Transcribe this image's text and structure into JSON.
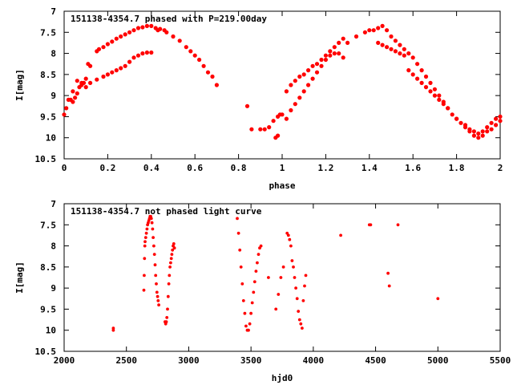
{
  "chart_data": [
    {
      "type": "scatter",
      "title": "151138-4354.7 phased with P=219.00day",
      "xlabel": "phase",
      "ylabel": "I[mag]",
      "xlim": [
        0,
        2
      ],
      "ylim": [
        10.5,
        7
      ],
      "y_inverted": true,
      "xticks": [
        0,
        0.2,
        0.4,
        0.6,
        0.8,
        1,
        1.2,
        1.4,
        1.6,
        1.8,
        2
      ],
      "xtick_labels": [
        "0",
        "0.2",
        "0.4",
        "0.6",
        "0.8",
        "1",
        "1.2",
        "1.4",
        "1.6",
        "1.8",
        "2"
      ],
      "yticks": [
        7,
        7.5,
        8,
        8.5,
        9,
        9.5,
        10,
        10.5
      ],
      "ytick_labels": [
        "7",
        "7.5",
        "8",
        "8.5",
        "9",
        "9.5",
        "10",
        "10.5"
      ],
      "grid": false,
      "point_color": "#ff0000",
      "series": [
        {
          "x": [
            0.0,
            0.01,
            0.02,
            0.03,
            0.04,
            0.05,
            0.06,
            0.07,
            0.08,
            0.09,
            0.1,
            0.11,
            0.12,
            0.04,
            0.06,
            0.08,
            0.1,
            0.12,
            0.15,
            0.16,
            0.18,
            0.2,
            0.22,
            0.24,
            0.26,
            0.28,
            0.3,
            0.32,
            0.34,
            0.36,
            0.38,
            0.4,
            0.42,
            0.44,
            0.46,
            0.15,
            0.18,
            0.2,
            0.22,
            0.24,
            0.26,
            0.28,
            0.3,
            0.32,
            0.34,
            0.36,
            0.38,
            0.4,
            0.43,
            0.47,
            0.5,
            0.53,
            0.56,
            0.58,
            0.6,
            0.62,
            0.64,
            0.66,
            0.68,
            0.7,
            0.84,
            0.86,
            0.9,
            0.92,
            0.94,
            0.96,
            0.98,
            0.99,
            1.0,
            0.97,
            0.98,
            1.02,
            1.04,
            1.06,
            1.08,
            1.1,
            1.12,
            1.14,
            1.16,
            1.18,
            1.2,
            1.22,
            1.24,
            1.26,
            1.28,
            1.02,
            1.04,
            1.06,
            1.08,
            1.1,
            1.12,
            1.14,
            1.16,
            1.18,
            1.2,
            1.22,
            1.24,
            1.26,
            1.28,
            1.3,
            1.34,
            1.38,
            1.4,
            1.42,
            1.44,
            1.46,
            1.48,
            1.5,
            1.52,
            1.54,
            1.56,
            1.58,
            1.6,
            1.62,
            1.64,
            1.66,
            1.68,
            1.7,
            1.72,
            1.74,
            1.76,
            1.78,
            1.8,
            1.82,
            1.84,
            1.86,
            1.88,
            1.9,
            1.92,
            1.94,
            1.96,
            1.98,
            2.0,
            1.44,
            1.46,
            1.48,
            1.5,
            1.52,
            1.54,
            1.56,
            1.58,
            1.6,
            1.62,
            1.64,
            1.66,
            1.68,
            1.7,
            1.72,
            1.74,
            1.76,
            1.8,
            1.84,
            1.86,
            1.88,
            1.9,
            1.92,
            1.94,
            1.96,
            1.98,
            2.0
          ],
          "y": [
            9.45,
            9.3,
            9.1,
            9.1,
            9.15,
            9.05,
            8.95,
            8.8,
            8.75,
            8.7,
            8.6,
            8.25,
            8.3,
            8.9,
            8.65,
            8.7,
            8.8,
            8.7,
            7.95,
            7.9,
            7.85,
            7.78,
            7.72,
            7.65,
            7.6,
            7.55,
            7.5,
            7.45,
            7.4,
            7.38,
            7.35,
            7.35,
            7.4,
            7.42,
            7.45,
            8.62,
            8.55,
            8.5,
            8.45,
            8.4,
            8.35,
            8.3,
            8.2,
            8.1,
            8.05,
            8.0,
            7.98,
            7.98,
            7.45,
            7.5,
            7.6,
            7.7,
            7.85,
            7.95,
            8.05,
            8.15,
            8.3,
            8.45,
            8.55,
            8.75,
            9.25,
            9.8,
            9.8,
            9.8,
            9.75,
            9.6,
            9.5,
            9.45,
            9.45,
            10.0,
            9.95,
            9.55,
            9.35,
            9.2,
            9.05,
            8.9,
            8.75,
            8.6,
            8.45,
            8.3,
            8.15,
            8.05,
            8.0,
            8.0,
            8.1,
            8.9,
            8.75,
            8.65,
            8.55,
            8.5,
            8.4,
            8.3,
            8.25,
            8.15,
            8.05,
            7.95,
            7.85,
            7.75,
            7.65,
            7.75,
            7.6,
            7.5,
            7.45,
            7.45,
            7.4,
            7.35,
            7.45,
            7.6,
            7.7,
            7.8,
            7.9,
            8.0,
            8.1,
            8.25,
            8.4,
            8.55,
            8.7,
            8.85,
            9.0,
            9.15,
            9.3,
            9.45,
            9.55,
            9.65,
            9.75,
            9.8,
            9.85,
            9.9,
            9.85,
            9.75,
            9.65,
            9.55,
            9.5,
            7.75,
            7.8,
            7.85,
            7.9,
            7.95,
            8.0,
            8.05,
            8.4,
            8.5,
            8.6,
            8.7,
            8.8,
            8.9,
            9.0,
            9.1,
            9.2,
            9.3,
            9.55,
            9.7,
            9.85,
            9.95,
            10.0,
            9.95,
            9.85,
            9.8,
            9.7,
            9.6
          ]
        }
      ]
    },
    {
      "type": "scatter",
      "title": "151138-4354.7 not phased light curve",
      "xlabel": "hjd0",
      "ylabel": "I[mag]",
      "xlim": [
        2000,
        5500
      ],
      "ylim": [
        10.5,
        7
      ],
      "y_inverted": true,
      "xticks": [
        2000,
        2500,
        3000,
        3500,
        4000,
        4500,
        5000,
        5500
      ],
      "xtick_labels": [
        "2000",
        "2500",
        "3000",
        "3500",
        "4000",
        "4500",
        "5000",
        "5500"
      ],
      "yticks": [
        7,
        7.5,
        8,
        8.5,
        9,
        9.5,
        10,
        10.5
      ],
      "ytick_labels": [
        "7",
        "7.5",
        "8",
        "8.5",
        "9",
        "9.5",
        "10",
        "10.5"
      ],
      "grid": false,
      "point_color": "#ff0000",
      "series": [
        {
          "x": [
            2395,
            2395,
            2640,
            2643,
            2645,
            2648,
            2650,
            2655,
            2660,
            2665,
            2670,
            2675,
            2680,
            2685,
            2690,
            2695,
            2700,
            2705,
            2710,
            2715,
            2720,
            2725,
            2730,
            2735,
            2740,
            2745,
            2750,
            2755,
            2760,
            2810,
            2815,
            2820,
            2825,
            2830,
            2835,
            2840,
            2845,
            2850,
            2855,
            2860,
            2865,
            2870,
            2875,
            2880,
            2885,
            3390,
            3400,
            3410,
            3420,
            3430,
            3440,
            3450,
            3460,
            3470,
            3480,
            3490,
            3500,
            3510,
            3520,
            3530,
            3540,
            3550,
            3560,
            3570,
            3580,
            3640,
            3700,
            3720,
            3740,
            3760,
            3790,
            3800,
            3810,
            3820,
            3830,
            3840,
            3850,
            3860,
            3870,
            3880,
            3890,
            3900,
            3910,
            3920,
            3930,
            3940,
            4220,
            4450,
            4460,
            4600,
            4610,
            4680,
            5000
          ],
          "y": [
            9.95,
            10.0,
            9.05,
            8.7,
            8.3,
            8.0,
            7.9,
            7.8,
            7.7,
            7.6,
            7.5,
            7.45,
            7.4,
            7.35,
            7.3,
            7.3,
            7.35,
            7.45,
            7.6,
            7.8,
            8.0,
            8.2,
            8.45,
            8.7,
            8.9,
            9.1,
            9.2,
            9.3,
            9.4,
            9.8,
            9.85,
            9.8,
            9.7,
            9.5,
            9.2,
            8.9,
            8.7,
            8.5,
            8.4,
            8.3,
            8.2,
            8.1,
            8.0,
            7.95,
            8.05,
            7.35,
            7.7,
            8.1,
            8.5,
            8.9,
            9.3,
            9.6,
            9.9,
            10.0,
            10.0,
            9.85,
            9.6,
            9.35,
            9.1,
            8.85,
            8.6,
            8.4,
            8.2,
            8.05,
            8.0,
            8.75,
            9.5,
            9.15,
            8.75,
            8.5,
            7.7,
            7.75,
            7.85,
            8.0,
            8.35,
            8.5,
            8.75,
            9.0,
            9.25,
            9.55,
            9.75,
            9.85,
            9.95,
            9.3,
            8.95,
            8.7,
            7.75,
            7.5,
            7.5,
            8.65,
            8.95,
            7.5,
            9.25
          ]
        }
      ]
    }
  ]
}
